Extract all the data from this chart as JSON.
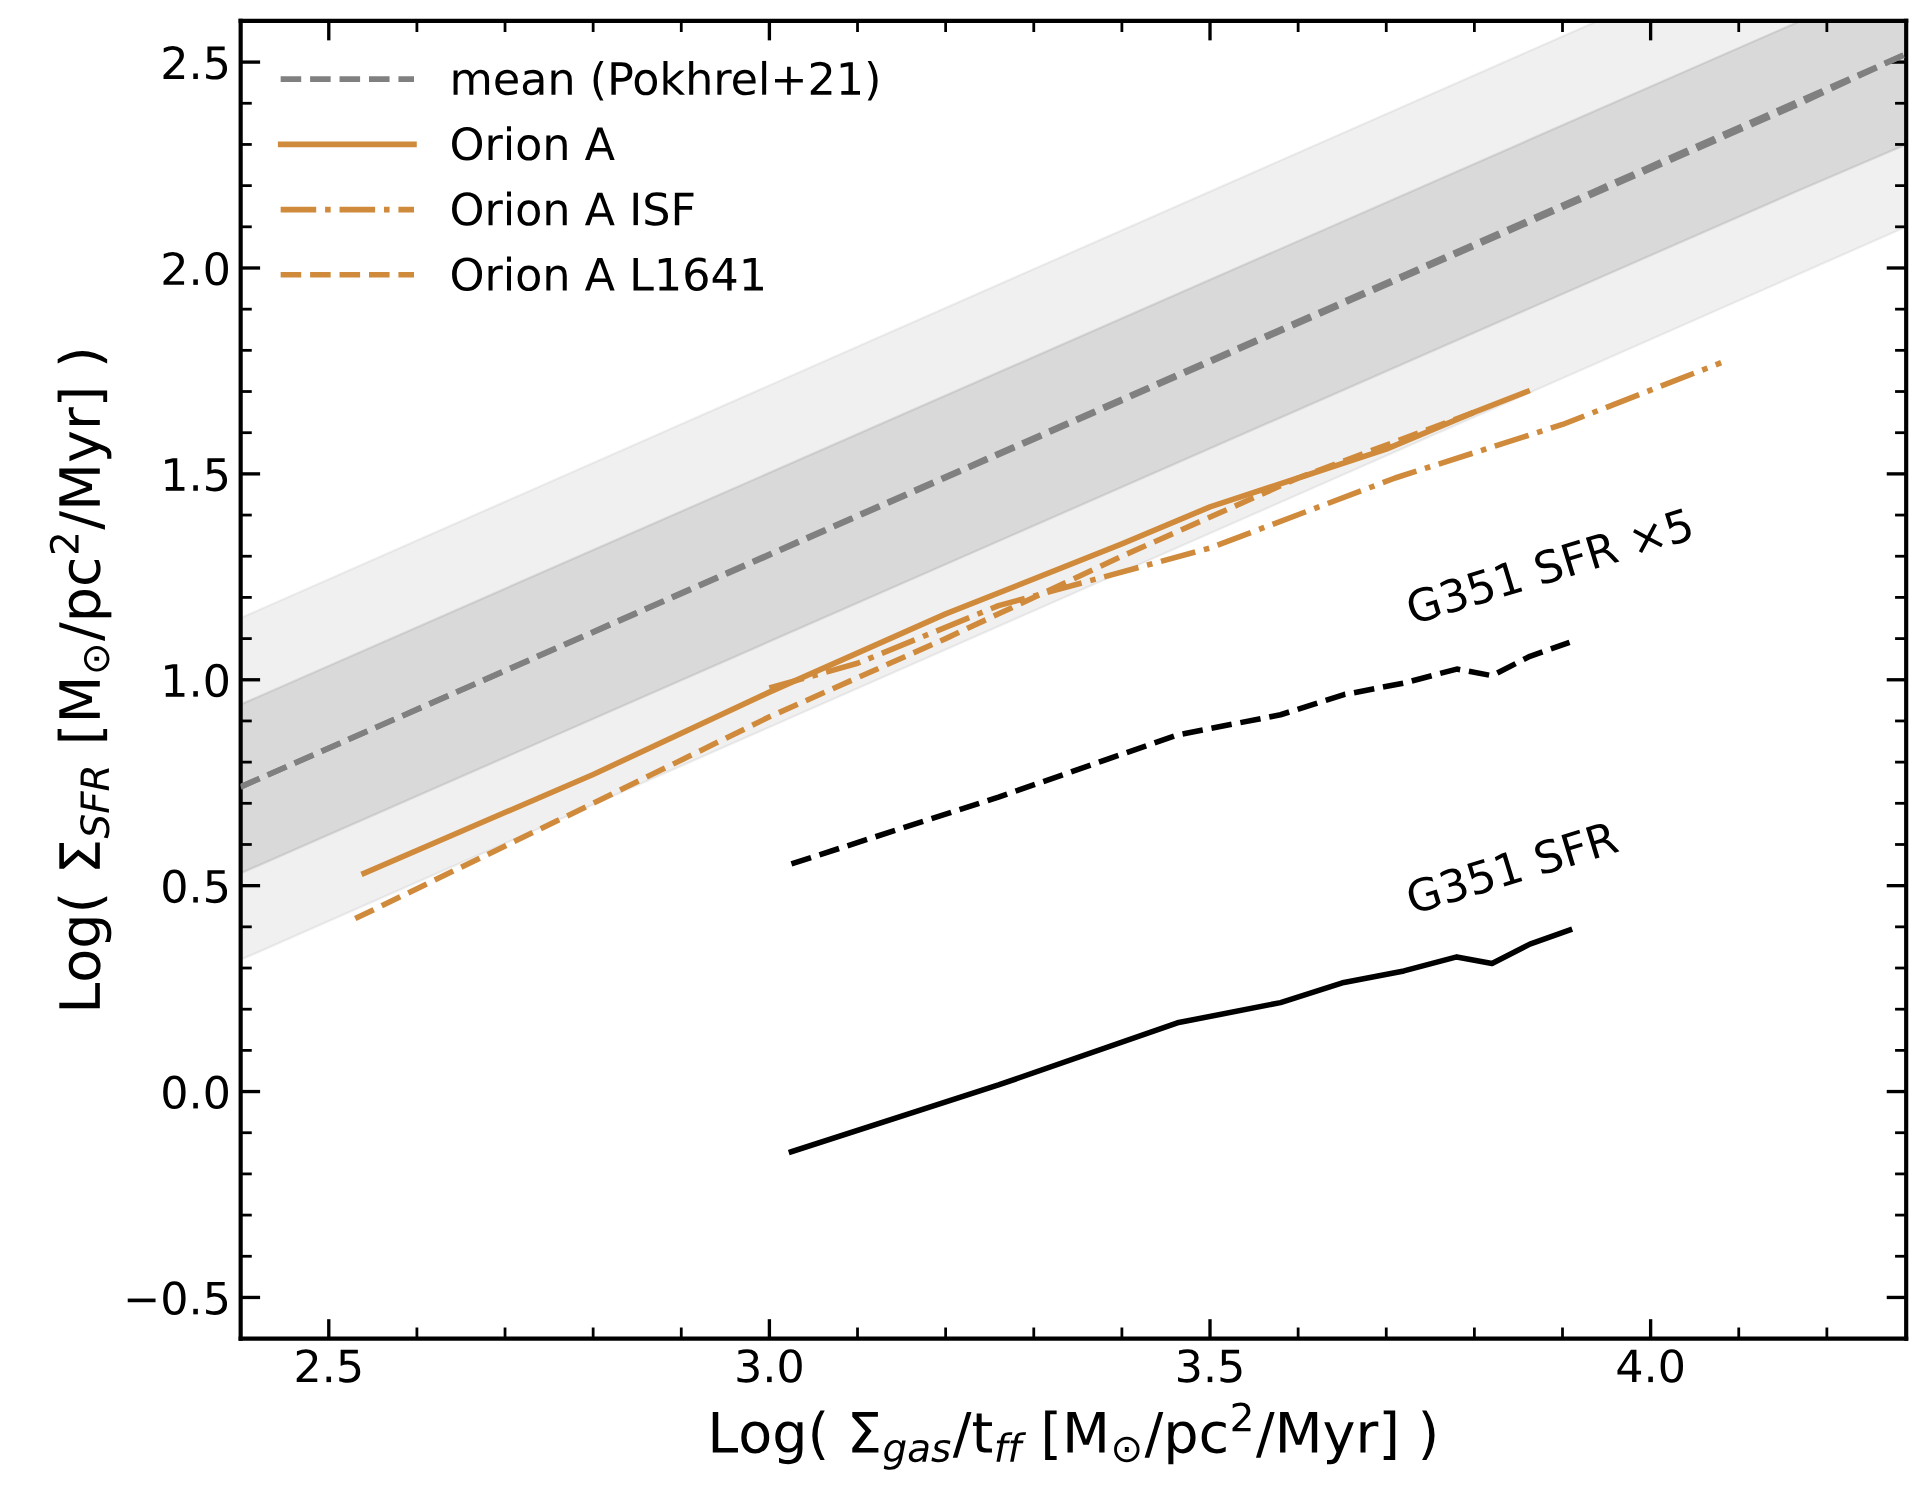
{
  "chart_data": {
    "type": "line",
    "xlabel": "Log( Σ$_{gas}$/t$_{ff}$ [M$_{⊙}$/pc$^{2}$/Myr] )",
    "ylabel": "Log( Σ$_{SFR}$ [M$_{⊙}$/pc$^{2}$/Myr] )",
    "xlim": [
      2.4,
      4.29
    ],
    "ylim": [
      -0.6,
      2.6
    ],
    "xticks": [
      2.5,
      {
        "value": 3,
        "label": "3.0"
      },
      3.5,
      {
        "value": 4,
        "label": "4.0"
      }
    ],
    "yticks": [
      {
        "value": -0.5,
        "label": "−0.5"
      },
      {
        "value": 0,
        "label": "0.0"
      },
      0.5,
      {
        "value": 1,
        "label": "1.0"
      },
      1.5,
      {
        "value": 2,
        "label": "2.0"
      },
      2.5
    ],
    "grid": false,
    "legend": "top left",
    "series": [
      {
        "name": "mean (Pokhrel+21)",
        "color": "#808080",
        "line_style": "dashed",
        "x": [
          2.4,
          4.17,
          4.29
        ],
        "values": [
          0.74,
          2.4,
          2.52
        ],
        "lower": [
          0.53,
          2.19,
          2.3
        ],
        "upper": [
          0.94,
          2.6,
          2.6
        ]
      },
      {
        "color": "#808080",
        "line_style": "dashed",
        "x": [
          2.4,
          3.94,
          4.29
        ],
        "values": [
          0.74,
          2.19,
          2.52
        ],
        "lower": [
          0.32,
          1.77,
          2.1
        ],
        "upper": [
          1.15,
          2.6,
          2.6
        ]
      },
      {
        "name": "Orion A",
        "color": "#d08a3c",
        "line_style": "solid",
        "x": [
          2.54,
          2.8,
          3.0,
          3.2,
          3.4,
          3.5,
          3.6,
          3.7,
          3.8,
          3.86
        ],
        "values": [
          0.53,
          0.77,
          0.97,
          1.16,
          1.33,
          1.42,
          1.49,
          1.56,
          1.65,
          1.7
        ]
      },
      {
        "name": "Orion A ISF",
        "color": "#d08a3c",
        "line_style": "dashdot",
        "x": [
          3.0,
          3.1,
          3.26,
          3.5,
          3.71,
          3.9,
          4.08
        ],
        "values": [
          0.98,
          1.04,
          1.18,
          1.32,
          1.49,
          1.62,
          1.77
        ]
      },
      {
        "name": "Orion A L1641",
        "color": "#d08a3c",
        "line_style": "dashed",
        "x": [
          2.53,
          2.8,
          3.0,
          3.2,
          3.4,
          3.6,
          3.8
        ],
        "values": [
          0.42,
          0.7,
          0.91,
          1.1,
          1.3,
          1.49,
          1.65
        ]
      },
      {
        "color": "#000000",
        "line_style": "dashed",
        "x": [
          3.025,
          3.26,
          3.463,
          3.58,
          3.652,
          3.72,
          3.78,
          3.82,
          3.863,
          3.908
        ],
        "values": [
          0.553,
          0.715,
          0.866,
          0.915,
          0.964,
          0.992,
          1.026,
          1.01,
          1.057,
          1.091
        ]
      },
      {
        "color": "#000000",
        "line_style": "solid",
        "x": [
          3.025,
          3.26,
          3.463,
          3.58,
          3.652,
          3.72,
          3.78,
          3.82,
          3.863,
          3.908
        ],
        "values": [
          -0.146,
          0.016,
          0.167,
          0.216,
          0.265,
          0.293,
          0.327,
          0.311,
          0.358,
          0.392
        ]
      }
    ],
    "annotations": [
      "G351 SFR ×5",
      "G351 SFR"
    ]
  }
}
